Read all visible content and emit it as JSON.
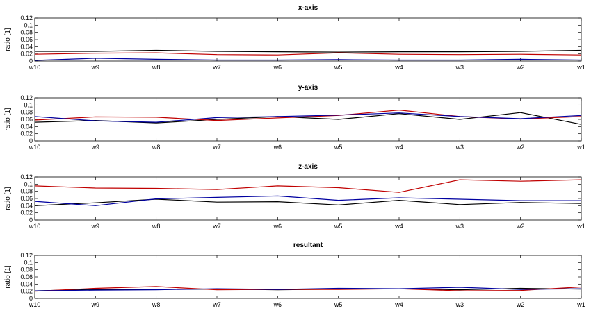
{
  "chart_data": [
    {
      "type": "line",
      "title": "x-axis",
      "ylabel": "ratio [1]",
      "categories": [
        "w10",
        "w9",
        "w8",
        "w7",
        "w6",
        "w5",
        "w4",
        "w3",
        "w2",
        "w1"
      ],
      "yticks": [
        "0",
        "0.02",
        "0.04",
        "0.06",
        "0.08",
        "0.1",
        "0.12"
      ],
      "ylim": [
        0,
        0.12
      ],
      "series": [
        {
          "color": "#000000",
          "values": [
            0.027,
            0.027,
            0.03,
            0.027,
            0.026,
            0.025,
            0.026,
            0.026,
            0.027,
            0.03
          ]
        },
        {
          "color": "#c00000",
          "values": [
            0.019,
            0.022,
            0.023,
            0.018,
            0.017,
            0.023,
            0.019,
            0.018,
            0.019,
            0.017
          ]
        },
        {
          "color": "#0000a0",
          "values": [
            0.002,
            0.008,
            0.005,
            0.003,
            0.003,
            0.004,
            0.003,
            0.003,
            0.005,
            0.003
          ]
        }
      ]
    },
    {
      "type": "line",
      "title": "y-axis",
      "ylabel": "ratio [1]",
      "categories": [
        "w10",
        "w9",
        "w8",
        "w7",
        "w6",
        "w5",
        "w4",
        "w3",
        "w2",
        "w1"
      ],
      "yticks": [
        "0",
        "0.02",
        "0.04",
        "0.06",
        "0.08",
        "0.1",
        "0.12"
      ],
      "ylim": [
        0,
        0.12
      ],
      "series": [
        {
          "color": "#000000",
          "values": [
            0.052,
            0.057,
            0.05,
            0.06,
            0.068,
            0.06,
            0.076,
            0.06,
            0.079,
            0.046
          ]
        },
        {
          "color": "#c00000",
          "values": [
            0.058,
            0.067,
            0.066,
            0.057,
            0.064,
            0.071,
            0.086,
            0.068,
            0.061,
            0.068
          ]
        },
        {
          "color": "#0000a0",
          "values": [
            0.068,
            0.056,
            0.052,
            0.065,
            0.068,
            0.072,
            0.078,
            0.068,
            0.062,
            0.071
          ]
        }
      ]
    },
    {
      "type": "line",
      "title": "z-axis",
      "ylabel": "ratio [1]",
      "categories": [
        "w10",
        "w9",
        "w8",
        "w7",
        "w6",
        "w5",
        "w4",
        "w3",
        "w2",
        "w1"
      ],
      "yticks": [
        "0",
        "0.02",
        "0.04",
        "0.06",
        "0.08",
        "0.1",
        "0.12"
      ],
      "ylim": [
        0,
        0.12
      ],
      "series": [
        {
          "color": "#000000",
          "values": [
            0.04,
            0.048,
            0.058,
            0.05,
            0.051,
            0.042,
            0.055,
            0.043,
            0.049,
            0.046
          ]
        },
        {
          "color": "#c00000",
          "values": [
            0.095,
            0.089,
            0.088,
            0.085,
            0.095,
            0.09,
            0.077,
            0.112,
            0.108,
            0.112
          ]
        },
        {
          "color": "#0000a0",
          "values": [
            0.052,
            0.04,
            0.059,
            0.063,
            0.067,
            0.055,
            0.062,
            0.058,
            0.054,
            0.054
          ]
        }
      ]
    },
    {
      "type": "line",
      "title": "resultant",
      "ylabel": "ratio [1]",
      "categories": [
        "w10",
        "w9",
        "w8",
        "w7",
        "w6",
        "w5",
        "w4",
        "w3",
        "w2",
        "w1"
      ],
      "yticks": [
        "0",
        "0.02",
        "0.04",
        "0.06",
        "0.08",
        "0.1",
        "0.12"
      ],
      "ylim": [
        0,
        0.12
      ],
      "series": [
        {
          "color": "#000000",
          "values": [
            0.021,
            0.025,
            0.025,
            0.026,
            0.024,
            0.026,
            0.027,
            0.024,
            0.028,
            0.026
          ]
        },
        {
          "color": "#c00000",
          "values": [
            0.02,
            0.028,
            0.033,
            0.024,
            0.025,
            0.025,
            0.027,
            0.021,
            0.022,
            0.032
          ]
        },
        {
          "color": "#0000a0",
          "values": [
            0.021,
            0.023,
            0.024,
            0.027,
            0.025,
            0.028,
            0.027,
            0.031,
            0.025,
            0.027
          ]
        }
      ]
    }
  ]
}
